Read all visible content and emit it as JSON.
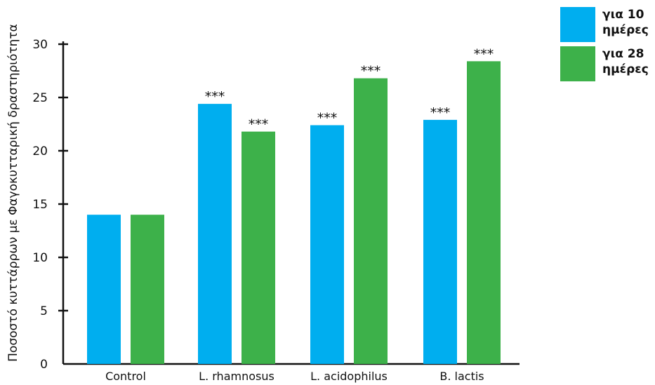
{
  "chart_data": {
    "type": "bar",
    "ylabel": "Ποσοστό κυττάρρων με Φαγοκυτταρική δραστηριότητα",
    "ylim": [
      0,
      30
    ],
    "yticks": [
      "0",
      "5",
      "10",
      "15",
      "20",
      "25",
      "30"
    ],
    "categories": [
      "Control",
      "L. rhamnosus",
      "L. acidophilus",
      "B. lactis"
    ],
    "series": [
      {
        "name": "για 10 ημέρες",
        "color": "#00aeef",
        "values": [
          14.0,
          24.4,
          22.4,
          22.9
        ],
        "annotations": [
          "",
          "***",
          "***",
          "***"
        ]
      },
      {
        "name": "για 28 ημέρες",
        "color": "#3db14a",
        "values": [
          14.0,
          21.8,
          26.8,
          28.4
        ],
        "annotations": [
          "",
          "***",
          "***",
          "***"
        ]
      }
    ],
    "grid": false,
    "legend": "top-right"
  }
}
